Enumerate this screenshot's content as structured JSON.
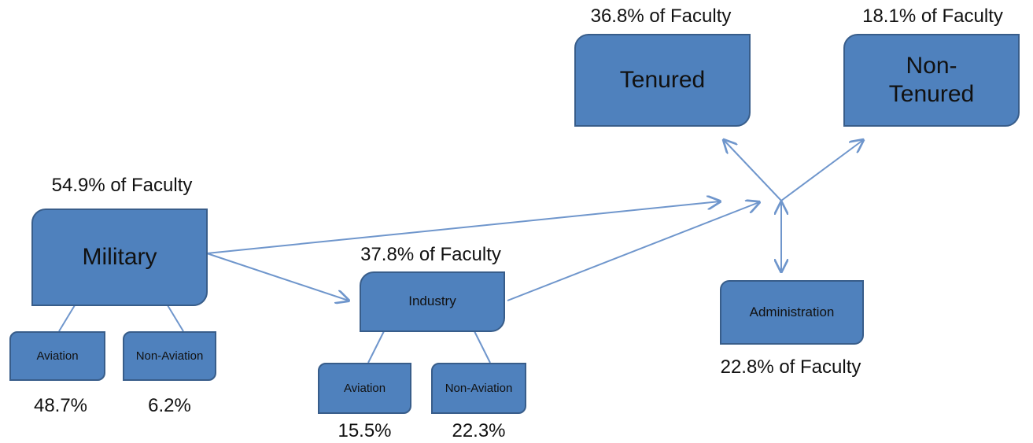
{
  "nodes": [
    {
      "label": "Military",
      "caption": "54.9% of Faculty"
    },
    {
      "label": "Aviation",
      "caption": "48.7%"
    },
    {
      "label": "Non-Aviation",
      "caption": "6.2%"
    },
    {
      "label": "Industry",
      "caption": "37.8% of Faculty"
    },
    {
      "label": "Aviation",
      "caption": "15.5%"
    },
    {
      "label": "Non-Aviation",
      "caption": "22.3%"
    },
    {
      "label": "Tenured",
      "caption": "36.8% of Faculty"
    },
    {
      "label": "Non-Tenured",
      "caption": "18.1% of Faculty"
    },
    {
      "label": "Administration",
      "caption": "22.8% of Faculty"
    }
  ]
}
